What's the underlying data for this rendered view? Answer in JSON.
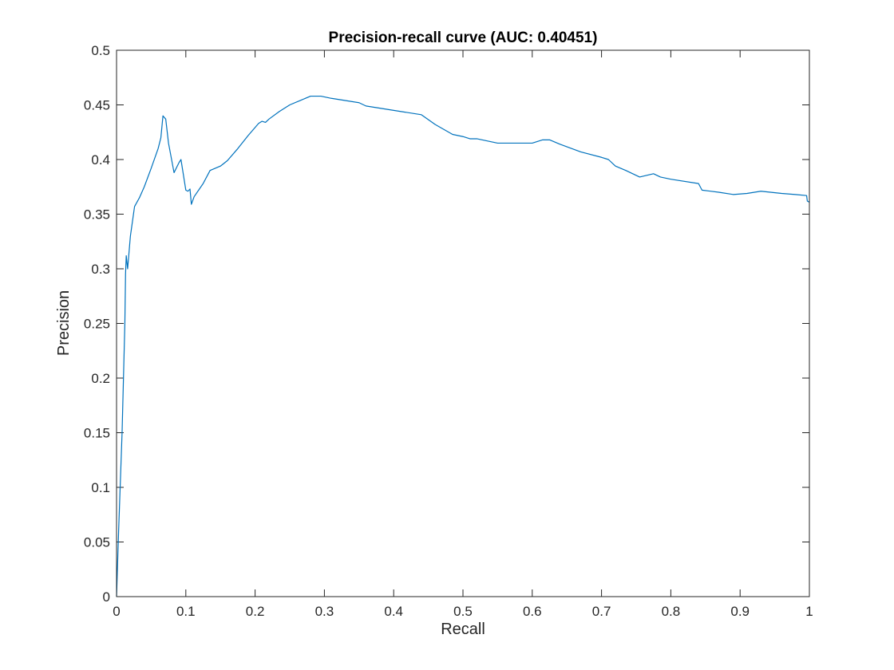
{
  "chart_data": {
    "type": "line",
    "title": "Precision-recall curve (AUC: 0.40451)",
    "xlabel": "Recall",
    "ylabel": "Precision",
    "xlim": [
      0,
      1
    ],
    "ylim": [
      0,
      0.5
    ],
    "x_ticks": [
      "0",
      "0.1",
      "0.2",
      "0.3",
      "0.4",
      "0.5",
      "0.6",
      "0.7",
      "0.8",
      "0.9",
      "1"
    ],
    "y_ticks": [
      "0",
      "0.05",
      "0.1",
      "0.15",
      "0.2",
      "0.25",
      "0.3",
      "0.35",
      "0.4",
      "0.45",
      "0.5"
    ],
    "grid": false,
    "line_color": "#0072BD",
    "series": [
      {
        "x": [
          0,
          0.003,
          0.008,
          0.012,
          0.013,
          0.014,
          0.016,
          0.02,
          0.026,
          0.033,
          0.04,
          0.05,
          0.06,
          0.064,
          0.067,
          0.071,
          0.075,
          0.083,
          0.09,
          0.093,
          0.1,
          0.103,
          0.106,
          0.108,
          0.112,
          0.125,
          0.135,
          0.15,
          0.16,
          0.175,
          0.19,
          0.205,
          0.21,
          0.215,
          0.22,
          0.235,
          0.25,
          0.265,
          0.28,
          0.295,
          0.31,
          0.33,
          0.35,
          0.36,
          0.4,
          0.44,
          0.46,
          0.485,
          0.5,
          0.51,
          0.52,
          0.55,
          0.6,
          0.615,
          0.625,
          0.64,
          0.67,
          0.7,
          0.71,
          0.72,
          0.735,
          0.755,
          0.775,
          0.785,
          0.8,
          0.84,
          0.845,
          0.87,
          0.89,
          0.91,
          0.93,
          0.96,
          0.98,
          0.996,
          0.997,
          1
        ],
        "y": [
          0,
          0.06,
          0.15,
          0.25,
          0.295,
          0.312,
          0.3,
          0.33,
          0.357,
          0.365,
          0.375,
          0.392,
          0.41,
          0.42,
          0.44,
          0.437,
          0.415,
          0.388,
          0.397,
          0.4,
          0.372,
          0.371,
          0.373,
          0.359,
          0.366,
          0.378,
          0.39,
          0.394,
          0.399,
          0.41,
          0.422,
          0.433,
          0.435,
          0.434,
          0.437,
          0.444,
          0.45,
          0.454,
          0.458,
          0.458,
          0.456,
          0.454,
          0.452,
          0.449,
          0.445,
          0.441,
          0.432,
          0.423,
          0.421,
          0.419,
          0.419,
          0.415,
          0.415,
          0.418,
          0.418,
          0.414,
          0.407,
          0.402,
          0.4,
          0.394,
          0.39,
          0.384,
          0.387,
          0.384,
          0.382,
          0.378,
          0.372,
          0.37,
          0.368,
          0.369,
          0.371,
          0.369,
          0.368,
          0.367,
          0.362,
          0.361
        ]
      }
    ]
  }
}
